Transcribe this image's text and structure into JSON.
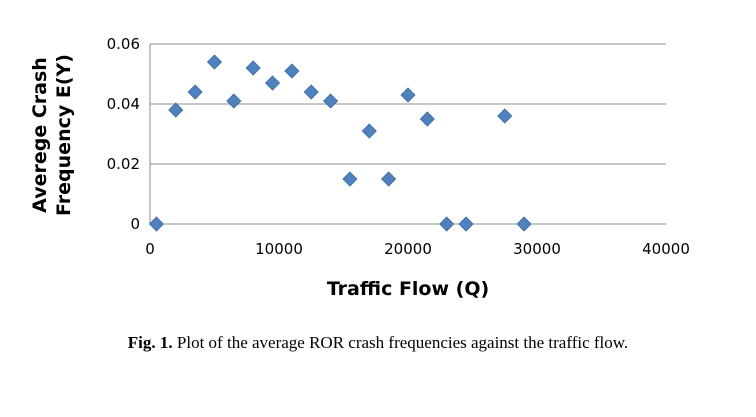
{
  "chart_data": {
    "type": "scatter",
    "title": "",
    "xlabel": "Traffic Flow (Q)",
    "ylabel": [
      "Averege Crash",
      "Frequency E(Y)"
    ],
    "xlim": [
      0,
      40000
    ],
    "ylim": [
      0,
      0.06
    ],
    "x_ticks": [
      "0",
      "10000",
      "20000",
      "30000",
      "40000"
    ],
    "y_ticks": [
      "0",
      "0.02",
      "0.04",
      "0.06"
    ],
    "grid": "horizontal",
    "marker": "diamond",
    "marker_color": "#4f81bd",
    "points": [
      {
        "x": 500,
        "y": 0
      },
      {
        "x": 2000,
        "y": 0.038
      },
      {
        "x": 3500,
        "y": 0.044
      },
      {
        "x": 5000,
        "y": 0.054
      },
      {
        "x": 6500,
        "y": 0.041
      },
      {
        "x": 8000,
        "y": 0.052
      },
      {
        "x": 9500,
        "y": 0.047
      },
      {
        "x": 11000,
        "y": 0.051
      },
      {
        "x": 12500,
        "y": 0.044
      },
      {
        "x": 14000,
        "y": 0.041
      },
      {
        "x": 15500,
        "y": 0.015
      },
      {
        "x": 17000,
        "y": 0.031
      },
      {
        "x": 18500,
        "y": 0.015
      },
      {
        "x": 20000,
        "y": 0.043
      },
      {
        "x": 21500,
        "y": 0.035
      },
      {
        "x": 23000,
        "y": 0
      },
      {
        "x": 24500,
        "y": 0
      },
      {
        "x": 27500,
        "y": 0.036
      },
      {
        "x": 29000,
        "y": 0
      }
    ]
  },
  "caption": {
    "label": "Fig. 1.",
    "text": " Plot of the average ROR crash frequencies against the traffic flow."
  }
}
